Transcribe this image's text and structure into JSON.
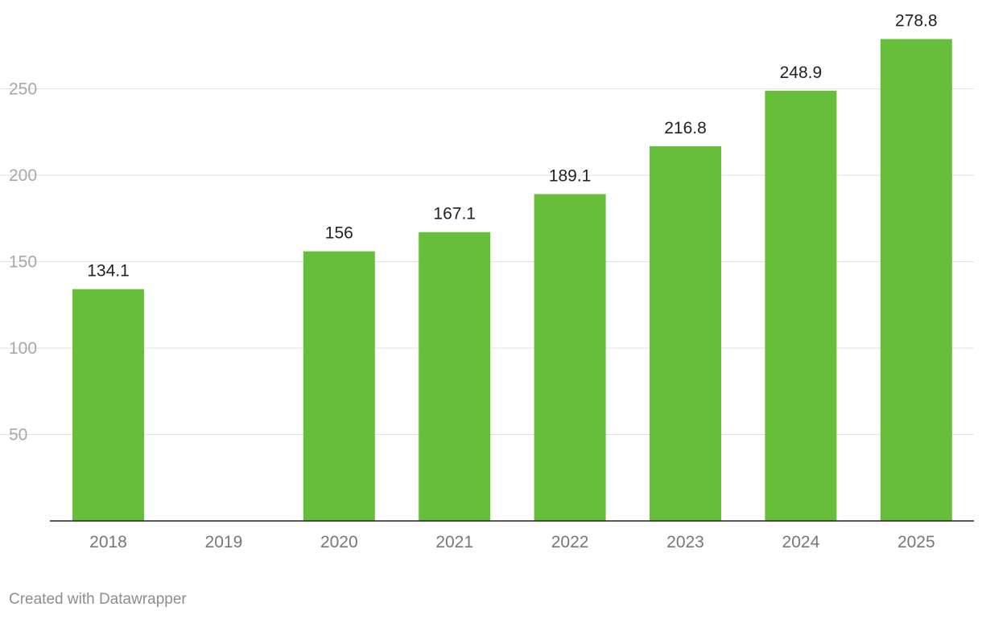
{
  "chart_data": {
    "type": "bar",
    "title": "",
    "xlabel": "",
    "ylabel": "",
    "categories": [
      "2018",
      "2019",
      "2020",
      "2021",
      "2022",
      "2023",
      "2024",
      "2025"
    ],
    "values": [
      134.1,
      null,
      156,
      167.1,
      189.1,
      216.8,
      248.9,
      278.8
    ],
    "value_labels": [
      "134.1",
      "",
      "156",
      "167.1",
      "189.1",
      "216.8",
      "248.9",
      "278.8"
    ],
    "ylim": [
      0,
      280
    ],
    "yticks": [
      50,
      100,
      150,
      200,
      250
    ],
    "ytick_labels": [
      "50",
      "100",
      "150",
      "200",
      "250"
    ],
    "grid": true,
    "bar_color": "#67be3a"
  },
  "footer": {
    "credit": "Created with Datawrapper"
  }
}
